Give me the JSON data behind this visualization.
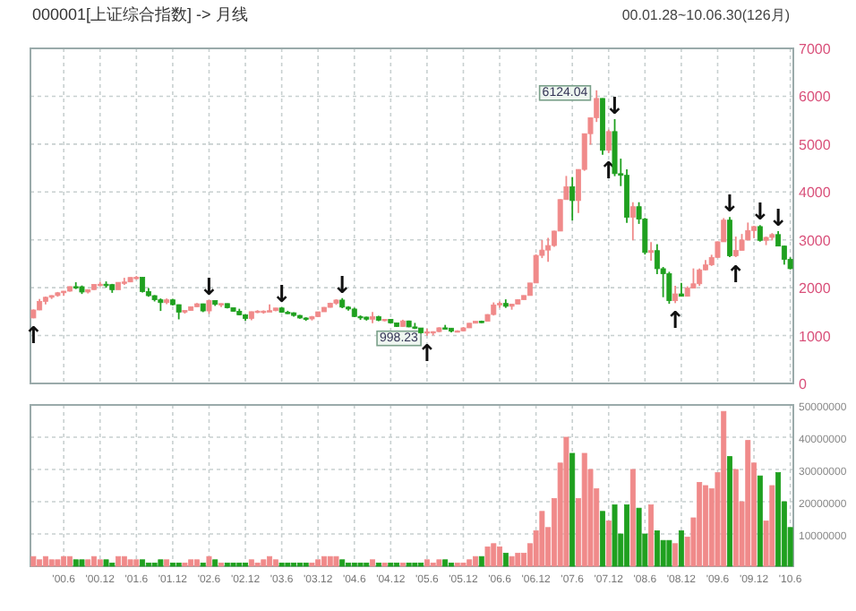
{
  "chart_data": [
    {
      "type": "candlestick",
      "title": "000001[上证综合指数] -> 月线",
      "subtitle": "00.01.28~10.06.30(126月)",
      "x": [
        "2000-01",
        "2000-02",
        "2000-03",
        "2000-04",
        "2000-05",
        "2000-06",
        "2000-07",
        "2000-08",
        "2000-09",
        "2000-10",
        "2000-11",
        "2000-12",
        "2001-01",
        "2001-02",
        "2001-03",
        "2001-04",
        "2001-05",
        "2001-06",
        "2001-07",
        "2001-08",
        "2001-09",
        "2001-10",
        "2001-11",
        "2001-12",
        "2002-01",
        "2002-02",
        "2002-03",
        "2002-04",
        "2002-05",
        "2002-06",
        "2002-07",
        "2002-08",
        "2002-09",
        "2002-10",
        "2002-11",
        "2002-12",
        "2003-01",
        "2003-02",
        "2003-03",
        "2003-04",
        "2003-05",
        "2003-06",
        "2003-07",
        "2003-08",
        "2003-09",
        "2003-10",
        "2003-11",
        "2003-12",
        "2004-01",
        "2004-02",
        "2004-03",
        "2004-04",
        "2004-05",
        "2004-06",
        "2004-07",
        "2004-08",
        "2004-09",
        "2004-10",
        "2004-11",
        "2004-12",
        "2005-01",
        "2005-02",
        "2005-03",
        "2005-04",
        "2005-05",
        "2005-06",
        "2005-07",
        "2005-08",
        "2005-09",
        "2005-10",
        "2005-11",
        "2005-12",
        "2006-01",
        "2006-02",
        "2006-03",
        "2006-04",
        "2006-05",
        "2006-06",
        "2006-07",
        "2006-08",
        "2006-09",
        "2006-10",
        "2006-11",
        "2006-12",
        "2007-01",
        "2007-02",
        "2007-03",
        "2007-04",
        "2007-05",
        "2007-06",
        "2007-07",
        "2007-08",
        "2007-09",
        "2007-10",
        "2007-11",
        "2007-12",
        "2008-01",
        "2008-02",
        "2008-03",
        "2008-04",
        "2008-05",
        "2008-06",
        "2008-07",
        "2008-08",
        "2008-09",
        "2008-10",
        "2008-11",
        "2008-12",
        "2009-01",
        "2009-02",
        "2009-03",
        "2009-04",
        "2009-05",
        "2009-06",
        "2009-07",
        "2009-08",
        "2009-09",
        "2009-10",
        "2009-11",
        "2009-12",
        "2010-01",
        "2010-02",
        "2010-03",
        "2010-04",
        "2010-05",
        "2010-06"
      ],
      "ohlc": [
        [
          1368,
          1546,
          1361,
          1535
        ],
        [
          1535,
          1765,
          1530,
          1714
        ],
        [
          1714,
          1817,
          1650,
          1800
        ],
        [
          1800,
          1840,
          1765,
          1836
        ],
        [
          1836,
          1911,
          1812,
          1894
        ],
        [
          1894,
          1931,
          1830,
          1928
        ],
        [
          1928,
          2024,
          1919,
          2023
        ],
        [
          2023,
          2114,
          1971,
          2021
        ],
        [
          2021,
          2046,
          1869,
          1910
        ],
        [
          1910,
          1965,
          1880,
          1961
        ],
        [
          1961,
          2071,
          1955,
          2070
        ],
        [
          2070,
          2125,
          2033,
          2073
        ],
        [
          2073,
          2131,
          1999,
          2065
        ],
        [
          2065,
          2080,
          1893,
          1959
        ],
        [
          1959,
          2113,
          1959,
          2112
        ],
        [
          2112,
          2207,
          2058,
          2120
        ],
        [
          2120,
          2215,
          2117,
          2214
        ],
        [
          2214,
          2245,
          2170,
          2218
        ],
        [
          2218,
          2220,
          1898,
          1920
        ],
        [
          1920,
          1993,
          1811,
          1834
        ],
        [
          1834,
          1845,
          1713,
          1748
        ],
        [
          1748,
          1776,
          1514,
          1689
        ],
        [
          1689,
          1776,
          1656,
          1747
        ],
        [
          1747,
          1771,
          1630,
          1646
        ],
        [
          1646,
          1650,
          1339,
          1491
        ],
        [
          1491,
          1525,
          1460,
          1524
        ],
        [
          1524,
          1607,
          1521,
          1603
        ],
        [
          1603,
          1681,
          1596,
          1664
        ],
        [
          1664,
          1668,
          1490,
          1515
        ],
        [
          1515,
          1748,
          1455,
          1733
        ],
        [
          1733,
          1735,
          1620,
          1652
        ],
        [
          1652,
          1670,
          1594,
          1669
        ],
        [
          1669,
          1669,
          1567,
          1581
        ],
        [
          1581,
          1582,
          1500,
          1508
        ],
        [
          1508,
          1560,
          1424,
          1434
        ],
        [
          1434,
          1445,
          1311,
          1357
        ],
        [
          1357,
          1503,
          1320,
          1499
        ],
        [
          1499,
          1531,
          1470,
          1511
        ],
        [
          1511,
          1526,
          1458,
          1511
        ],
        [
          1511,
          1650,
          1501,
          1521
        ],
        [
          1521,
          1577,
          1509,
          1576
        ],
        [
          1576,
          1595,
          1475,
          1487
        ],
        [
          1487,
          1518,
          1452,
          1476
        ],
        [
          1476,
          1486,
          1395,
          1421
        ],
        [
          1421,
          1434,
          1354,
          1367
        ],
        [
          1367,
          1383,
          1307,
          1348
        ],
        [
          1348,
          1410,
          1316,
          1397
        ],
        [
          1397,
          1498,
          1386,
          1497
        ],
        [
          1497,
          1594,
          1496,
          1590
        ],
        [
          1590,
          1687,
          1585,
          1675
        ],
        [
          1675,
          1760,
          1642,
          1742
        ],
        [
          1742,
          1783,
          1573,
          1595
        ],
        [
          1595,
          1612,
          1523,
          1555
        ],
        [
          1555,
          1582,
          1385,
          1399
        ],
        [
          1399,
          1421,
          1327,
          1386
        ],
        [
          1386,
          1395,
          1313,
          1342
        ],
        [
          1342,
          1491,
          1259,
          1396
        ],
        [
          1396,
          1414,
          1300,
          1320
        ],
        [
          1320,
          1346,
          1296,
          1340
        ],
        [
          1340,
          1343,
          1259,
          1266
        ],
        [
          1266,
          1268,
          1178,
          1191
        ],
        [
          1191,
          1331,
          1183,
          1306
        ],
        [
          1306,
          1313,
          1173,
          1181
        ],
        [
          1181,
          1265,
          1136,
          1159
        ],
        [
          1159,
          1161,
          1043,
          1060
        ],
        [
          1060,
          1146,
          998.23,
          1080
        ],
        [
          1080,
          1088,
          1004,
          1083
        ],
        [
          1083,
          1174,
          1070,
          1162
        ],
        [
          1162,
          1223,
          1135,
          1155
        ],
        [
          1155,
          1157,
          1067,
          1092
        ],
        [
          1092,
          1110,
          1074,
          1099
        ],
        [
          1099,
          1178,
          1090,
          1161
        ],
        [
          1161,
          1260,
          1159,
          1258
        ],
        [
          1258,
          1302,
          1258,
          1299
        ],
        [
          1299,
          1312,
          1263,
          1298
        ],
        [
          1298,
          1446,
          1298,
          1440
        ],
        [
          1440,
          1693,
          1419,
          1641
        ],
        [
          1641,
          1713,
          1582,
          1672
        ],
        [
          1672,
          1757,
          1578,
          1612
        ],
        [
          1612,
          1661,
          1541,
          1658
        ],
        [
          1658,
          1756,
          1657,
          1752
        ],
        [
          1752,
          1839,
          1748,
          1837
        ],
        [
          1837,
          2100,
          1837,
          2099
        ],
        [
          2099,
          2698,
          2099,
          2675
        ],
        [
          2675,
          2995,
          2618,
          2786
        ],
        [
          2786,
          3042,
          2541,
          2881
        ],
        [
          2881,
          3192,
          2855,
          3183
        ],
        [
          3183,
          3848,
          3183,
          3841
        ],
        [
          3841,
          4335,
          3841,
          4109
        ],
        [
          4109,
          4312,
          3404,
          3820
        ],
        [
          3820,
          4471,
          3563,
          4471
        ],
        [
          4471,
          5219,
          4442,
          5218
        ],
        [
          5218,
          5552,
          4988,
          5552
        ],
        [
          5552,
          6124.04,
          5462,
          5954
        ],
        [
          5954,
          5955,
          4778,
          4871
        ],
        [
          4871,
          5303,
          4812,
          5262
        ],
        [
          5262,
          5522,
          4330,
          4383
        ],
        [
          4383,
          4696,
          4123,
          4348
        ],
        [
          4348,
          4473,
          3357,
          3472
        ],
        [
          3472,
          3786,
          2990,
          3693
        ],
        [
          3693,
          3786,
          3333,
          3433
        ],
        [
          3433,
          3459,
          2693,
          2736
        ],
        [
          2736,
          2952,
          2566,
          2775
        ],
        [
          2775,
          2909,
          2284,
          2397
        ],
        [
          2397,
          2434,
          1802,
          2293
        ],
        [
          2293,
          2333,
          1664,
          1729
        ],
        [
          1729,
          2040,
          1678,
          1871
        ],
        [
          1871,
          2100,
          1814,
          1821
        ],
        [
          1821,
          2029,
          1815,
          1991
        ],
        [
          1991,
          2403,
          1991,
          2082
        ],
        [
          2082,
          2402,
          2037,
          2373
        ],
        [
          2373,
          2580,
          2361,
          2477
        ],
        [
          2477,
          2689,
          2455,
          2633
        ],
        [
          2633,
          2967,
          2627,
          2959
        ],
        [
          2959,
          3454,
          2959,
          3412
        ],
        [
          3412,
          3478,
          2639,
          2667
        ],
        [
          2667,
          3068,
          2639,
          2779
        ],
        [
          2779,
          3123,
          2779,
          2996
        ],
        [
          2996,
          3361,
          2991,
          3195
        ],
        [
          3195,
          3296,
          3039,
          3277
        ],
        [
          3277,
          3307,
          2963,
          2989
        ],
        [
          2989,
          3068,
          2890,
          3051
        ],
        [
          3051,
          3141,
          2988,
          3110
        ],
        [
          3110,
          3181,
          2869,
          2870
        ],
        [
          2870,
          2878,
          2482,
          2592
        ],
        [
          2592,
          2634,
          2382,
          2398
        ]
      ],
      "colors": [
        "#f08a8a",
        "#f08a8a",
        "#f08a8a",
        "#f08a8a",
        "#f08a8a",
        "#f08a8a",
        "#f08a8a",
        "#1fa01f",
        "#1fa01f",
        "#f08a8a",
        "#f08a8a",
        "#f08a8a",
        "#1fa01f",
        "#1fa01f",
        "#f08a8a",
        "#f08a8a",
        "#f08a8a",
        "#f08a8a",
        "#1fa01f",
        "#1fa01f",
        "#1fa01f",
        "#1fa01f",
        "#f08a8a",
        "#1fa01f",
        "#1fa01f",
        "#f08a8a",
        "#f08a8a",
        "#f08a8a",
        "#1fa01f",
        "#f08a8a",
        "#1fa01f",
        "#f08a8a",
        "#1fa01f",
        "#1fa01f",
        "#1fa01f",
        "#1fa01f",
        "#f08a8a",
        "#f08a8a",
        "#f08a8a",
        "#f08a8a",
        "#f08a8a",
        "#1fa01f",
        "#1fa01f",
        "#1fa01f",
        "#1fa01f",
        "#1fa01f",
        "#f08a8a",
        "#f08a8a",
        "#f08a8a",
        "#f08a8a",
        "#f08a8a",
        "#1fa01f",
        "#1fa01f",
        "#1fa01f",
        "#1fa01f",
        "#1fa01f",
        "#f08a8a",
        "#1fa01f",
        "#f08a8a",
        "#1fa01f",
        "#1fa01f",
        "#f08a8a",
        "#1fa01f",
        "#1fa01f",
        "#1fa01f",
        "#f08a8a",
        "#f08a8a",
        "#f08a8a",
        "#1fa01f",
        "#1fa01f",
        "#f08a8a",
        "#f08a8a",
        "#f08a8a",
        "#f08a8a",
        "#1fa01f",
        "#f08a8a",
        "#f08a8a",
        "#f08a8a",
        "#1fa01f",
        "#f08a8a",
        "#f08a8a",
        "#f08a8a",
        "#f08a8a",
        "#f08a8a",
        "#f08a8a",
        "#f08a8a",
        "#f08a8a",
        "#f08a8a",
        "#f08a8a",
        "#1fa01f",
        "#f08a8a",
        "#f08a8a",
        "#f08a8a",
        "#f08a8a",
        "#1fa01f",
        "#f08a8a",
        "#1fa01f",
        "#1fa01f",
        "#1fa01f",
        "#f08a8a",
        "#1fa01f",
        "#1fa01f",
        "#f08a8a",
        "#1fa01f",
        "#1fa01f",
        "#1fa01f",
        "#f08a8a",
        "#1fa01f",
        "#f08a8a",
        "#f08a8a",
        "#f08a8a",
        "#f08a8a",
        "#f08a8a",
        "#f08a8a",
        "#f08a8a",
        "#1fa01f",
        "#f08a8a",
        "#f08a8a",
        "#f08a8a",
        "#f08a8a",
        "#1fa01f",
        "#f08a8a",
        "#f08a8a",
        "#1fa01f",
        "#1fa01f",
        "#1fa01f"
      ],
      "xlim": [
        "2000-01",
        "2010-06"
      ],
      "xticks": [
        {
          "value": "2000-06",
          "label": null
        },
        {
          "value": "2000-12",
          "label": null
        },
        {
          "value": "2001-06",
          "label": null
        },
        {
          "value": "2001-12",
          "label": null
        },
        {
          "value": "2002-06",
          "label": null
        },
        {
          "value": "2002-12",
          "label": null
        },
        {
          "value": "2003-06",
          "label": null
        },
        {
          "value": "2003-12",
          "label": null
        },
        {
          "value": "2004-06",
          "label": null
        },
        {
          "value": "2004-12",
          "label": null
        },
        {
          "value": "2005-06",
          "label": null
        },
        {
          "value": "2005-12",
          "label": null
        },
        {
          "value": "2006-06",
          "label": null
        },
        {
          "value": "2006-12",
          "label": null
        },
        {
          "value": "2007-06",
          "label": null
        },
        {
          "value": "2007-12",
          "label": null
        },
        {
          "value": "2008-06",
          "label": null
        },
        {
          "value": "2008-12",
          "label": null
        },
        {
          "value": "2009-06",
          "label": null
        },
        {
          "value": "2009-12",
          "label": null
        },
        {
          "value": "2010-06",
          "label": null
        }
      ],
      "ylim": [
        0,
        7000
      ],
      "yticks": [
        0,
        1000,
        2000,
        3000,
        4000,
        5000,
        6000,
        7000
      ],
      "grid": true,
      "tick_labels": "y",
      "annotations": [
        {
          "text": "6124.04",
          "x": "2007-10",
          "y": 6124.04
        },
        {
          "text": "998.23",
          "x": "2005-06",
          "y": 998.23
        },
        {
          "text": "↑",
          "x": "2000-01",
          "y": 1361
        },
        {
          "text": "↓",
          "x": "2002-06",
          "y": 1748
        },
        {
          "text": "↓",
          "x": "2003-06",
          "y": 1595
        },
        {
          "text": "↓",
          "x": "2004-04",
          "y": 1783
        },
        {
          "text": "↑",
          "x": "2005-06",
          "y": 998.23
        },
        {
          "text": "↑",
          "x": "2007-12",
          "y": 4812
        },
        {
          "text": "↓",
          "x": "2008-01",
          "y": 5522
        },
        {
          "text": "↑",
          "x": "2008-11",
          "y": 1678
        },
        {
          "text": "↓",
          "x": "2009-08",
          "y": 3478
        },
        {
          "text": "↑",
          "x": "2009-09",
          "y": 2639
        },
        {
          "text": "↓",
          "x": "2010-01",
          "y": 3307
        },
        {
          "text": "↓",
          "x": "2010-04",
          "y": 3181
        }
      ]
    },
    {
      "type": "bar",
      "x": [
        "2000-01",
        "2000-02",
        "2000-03",
        "2000-04",
        "2000-05",
        "2000-06",
        "2000-07",
        "2000-08",
        "2000-09",
        "2000-10",
        "2000-11",
        "2000-12",
        "2001-01",
        "2001-02",
        "2001-03",
        "2001-04",
        "2001-05",
        "2001-06",
        "2001-07",
        "2001-08",
        "2001-09",
        "2001-10",
        "2001-11",
        "2001-12",
        "2002-01",
        "2002-02",
        "2002-03",
        "2002-04",
        "2002-05",
        "2002-06",
        "2002-07",
        "2002-08",
        "2002-09",
        "2002-10",
        "2002-11",
        "2002-12",
        "2003-01",
        "2003-02",
        "2003-03",
        "2003-04",
        "2003-05",
        "2003-06",
        "2003-07",
        "2003-08",
        "2003-09",
        "2003-10",
        "2003-11",
        "2003-12",
        "2004-01",
        "2004-02",
        "2004-03",
        "2004-04",
        "2004-05",
        "2004-06",
        "2004-07",
        "2004-08",
        "2004-09",
        "2004-10",
        "2004-11",
        "2004-12",
        "2005-01",
        "2005-02",
        "2005-03",
        "2005-04",
        "2005-05",
        "2005-06",
        "2005-07",
        "2005-08",
        "2005-09",
        "2005-10",
        "2005-11",
        "2005-12",
        "2006-01",
        "2006-02",
        "2006-03",
        "2006-04",
        "2006-05",
        "2006-06",
        "2006-07",
        "2006-08",
        "2006-09",
        "2006-10",
        "2006-11",
        "2006-12",
        "2007-01",
        "2007-02",
        "2007-03",
        "2007-04",
        "2007-05",
        "2007-06",
        "2007-07",
        "2007-08",
        "2007-09",
        "2007-10",
        "2007-11",
        "2007-12",
        "2008-01",
        "2008-02",
        "2008-03",
        "2008-04",
        "2008-05",
        "2008-06",
        "2008-07",
        "2008-08",
        "2008-09",
        "2008-10",
        "2008-11",
        "2008-12",
        "2009-01",
        "2009-02",
        "2009-03",
        "2009-04",
        "2009-05",
        "2009-06",
        "2009-07",
        "2009-08",
        "2009-09",
        "2009-10",
        "2009-11",
        "2009-12",
        "2010-01",
        "2010-02",
        "2010-03",
        "2010-04",
        "2010-05",
        "2010-06"
      ],
      "values": [
        3000000,
        2000000,
        3000000,
        2000000,
        2000000,
        3000000,
        3000000,
        2000000,
        2000000,
        2000000,
        3000000,
        2000000,
        2000000,
        1000000,
        3000000,
        3000000,
        2000000,
        2000000,
        2000000,
        1000000,
        1000000,
        2000000,
        2000000,
        1000000,
        1000000,
        1000000,
        2000000,
        2000000,
        1000000,
        3000000,
        2000000,
        1000000,
        1000000,
        1000000,
        1000000,
        1000000,
        2000000,
        1000000,
        2000000,
        3000000,
        2000000,
        1000000,
        1000000,
        1000000,
        1000000,
        1000000,
        1000000,
        2000000,
        3000000,
        3000000,
        3000000,
        2000000,
        1000000,
        1000000,
        1000000,
        1000000,
        2000000,
        1000000,
        1000000,
        1000000,
        1000000,
        1000000,
        1000000,
        1000000,
        1000000,
        2000000,
        1000000,
        2000000,
        2000000,
        1000000,
        1000000,
        1000000,
        2000000,
        3000000,
        3000000,
        6000000,
        7000000,
        6000000,
        4000000,
        3000000,
        4000000,
        4000000,
        7000000,
        11000000,
        17000000,
        12000000,
        21000000,
        32000000,
        40000000,
        35000000,
        21000000,
        35000000,
        30000000,
        24000000,
        17000000,
        14000000,
        19000000,
        10000000,
        19000000,
        30000000,
        18000000,
        10000000,
        19000000,
        11000000,
        8000000,
        8000000,
        7000000,
        11000000,
        9000000,
        15000000,
        26000000,
        25000000,
        24000000,
        29000000,
        48000000,
        34000000,
        30000000,
        20000000,
        39000000,
        32000000,
        28000000,
        14000000,
        25000000,
        29000000,
        20000000,
        12000000
      ],
      "colors": [
        "#f08a8a",
        "#f08a8a",
        "#f08a8a",
        "#f08a8a",
        "#f08a8a",
        "#f08a8a",
        "#f08a8a",
        "#1fa01f",
        "#1fa01f",
        "#f08a8a",
        "#f08a8a",
        "#f08a8a",
        "#1fa01f",
        "#1fa01f",
        "#f08a8a",
        "#f08a8a",
        "#f08a8a",
        "#f08a8a",
        "#1fa01f",
        "#1fa01f",
        "#1fa01f",
        "#1fa01f",
        "#f08a8a",
        "#1fa01f",
        "#1fa01f",
        "#f08a8a",
        "#f08a8a",
        "#f08a8a",
        "#1fa01f",
        "#f08a8a",
        "#1fa01f",
        "#f08a8a",
        "#1fa01f",
        "#1fa01f",
        "#1fa01f",
        "#1fa01f",
        "#f08a8a",
        "#f08a8a",
        "#f08a8a",
        "#f08a8a",
        "#f08a8a",
        "#1fa01f",
        "#1fa01f",
        "#1fa01f",
        "#1fa01f",
        "#1fa01f",
        "#f08a8a",
        "#f08a8a",
        "#f08a8a",
        "#f08a8a",
        "#f08a8a",
        "#1fa01f",
        "#1fa01f",
        "#1fa01f",
        "#1fa01f",
        "#1fa01f",
        "#f08a8a",
        "#1fa01f",
        "#f08a8a",
        "#1fa01f",
        "#1fa01f",
        "#f08a8a",
        "#1fa01f",
        "#1fa01f",
        "#1fa01f",
        "#f08a8a",
        "#f08a8a",
        "#f08a8a",
        "#1fa01f",
        "#1fa01f",
        "#f08a8a",
        "#f08a8a",
        "#f08a8a",
        "#f08a8a",
        "#1fa01f",
        "#f08a8a",
        "#f08a8a",
        "#f08a8a",
        "#1fa01f",
        "#f08a8a",
        "#f08a8a",
        "#f08a8a",
        "#f08a8a",
        "#f08a8a",
        "#f08a8a",
        "#f08a8a",
        "#f08a8a",
        "#f08a8a",
        "#f08a8a",
        "#1fa01f",
        "#f08a8a",
        "#f08a8a",
        "#f08a8a",
        "#f08a8a",
        "#1fa01f",
        "#f08a8a",
        "#1fa01f",
        "#1fa01f",
        "#1fa01f",
        "#f08a8a",
        "#1fa01f",
        "#1fa01f",
        "#f08a8a",
        "#1fa01f",
        "#1fa01f",
        "#1fa01f",
        "#f08a8a",
        "#1fa01f",
        "#f08a8a",
        "#f08a8a",
        "#f08a8a",
        "#f08a8a",
        "#f08a8a",
        "#f08a8a",
        "#f08a8a",
        "#1fa01f",
        "#f08a8a",
        "#f08a8a",
        "#f08a8a",
        "#f08a8a",
        "#1fa01f",
        "#f08a8a",
        "#f08a8a",
        "#1fa01f",
        "#1fa01f",
        "#1fa01f"
      ],
      "xlim": [
        "2000-01",
        "2010-06"
      ],
      "xticks": [
        {
          "value": "2000-06",
          "label": "'00.6"
        },
        {
          "value": "2000-12",
          "label": "'00.12"
        },
        {
          "value": "2001-06",
          "label": "'01.6"
        },
        {
          "value": "2001-12",
          "label": "'01.12"
        },
        {
          "value": "2002-06",
          "label": "'02.6"
        },
        {
          "value": "2002-12",
          "label": "'02.12"
        },
        {
          "value": "2003-06",
          "label": "'03.6"
        },
        {
          "value": "2003-12",
          "label": "'03.12"
        },
        {
          "value": "2004-06",
          "label": "'04.6"
        },
        {
          "value": "2004-12",
          "label": "'04.12"
        },
        {
          "value": "2005-06",
          "label": "'05.6"
        },
        {
          "value": "2005-12",
          "label": "'05.12"
        },
        {
          "value": "2006-06",
          "label": "'06.6"
        },
        {
          "value": "2006-12",
          "label": "'06.12"
        },
        {
          "value": "2007-06",
          "label": "'07.6"
        },
        {
          "value": "2007-12",
          "label": "'07.12"
        },
        {
          "value": "2008-06",
          "label": "'08.6"
        },
        {
          "value": "2008-12",
          "label": "'08.12"
        },
        {
          "value": "2009-06",
          "label": "'09.6"
        },
        {
          "value": "2009-12",
          "label": "'09.12"
        },
        {
          "value": "2010-06",
          "label": "'10.6"
        }
      ],
      "ylim": [
        0,
        50000000
      ],
      "yticks": [
        10000000,
        20000000,
        30000000,
        40000000,
        50000000
      ],
      "grid": true
    }
  ]
}
